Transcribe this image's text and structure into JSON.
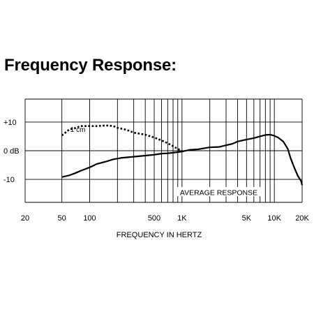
{
  "page": {
    "title": "Frequency Response:"
  },
  "chart_data": {
    "type": "line",
    "x_scale": "log",
    "xlim": [
      20,
      20000
    ],
    "ylim": [
      -18,
      18
    ],
    "x_ticks": [
      {
        "value": 20,
        "label": "20"
      },
      {
        "value": 50,
        "label": "50"
      },
      {
        "value": 100,
        "label": "100"
      },
      {
        "value": 500,
        "label": "500"
      },
      {
        "value": 1000,
        "label": "1K"
      },
      {
        "value": 5000,
        "label": "5K"
      },
      {
        "value": 10000,
        "label": "10K"
      },
      {
        "value": 20000,
        "label": "20K"
      }
    ],
    "y_ticks": [
      {
        "value": 10,
        "label": "+10"
      },
      {
        "value": 0,
        "label": "0 dB"
      },
      {
        "value": -10,
        "label": "-10"
      }
    ],
    "x_gridlines": [
      20,
      50,
      100,
      200,
      300,
      400,
      500,
      600,
      700,
      800,
      900,
      1000,
      2000,
      3000,
      4000,
      5000,
      6000,
      7000,
      8000,
      9000,
      10000,
      20000
    ],
    "y_gridlines": [
      -18,
      -10,
      0,
      10,
      18
    ],
    "xlabel": "FREQUENCY IN HERTZ",
    "ylabel": "",
    "grid": true,
    "series": [
      {
        "name": "AVERAGE RESPONSE",
        "style": "solid",
        "color": "#000000",
        "points": [
          [
            50,
            -9.2
          ],
          [
            60,
            -8.6
          ],
          [
            70,
            -7.8
          ],
          [
            80,
            -7.0
          ],
          [
            100,
            -5.8
          ],
          [
            120,
            -4.6
          ],
          [
            150,
            -3.8
          ],
          [
            180,
            -3.0
          ],
          [
            220,
            -2.5
          ],
          [
            300,
            -2.1
          ],
          [
            400,
            -1.7
          ],
          [
            500,
            -1.4
          ],
          [
            600,
            -1.0
          ],
          [
            700,
            -0.9
          ],
          [
            800,
            -0.7
          ],
          [
            1000,
            -0.3
          ],
          [
            1200,
            0.3
          ],
          [
            1500,
            0.5
          ],
          [
            2000,
            1.2
          ],
          [
            2500,
            1.3
          ],
          [
            3000,
            1.9
          ],
          [
            3500,
            2.4
          ],
          [
            4000,
            3.2
          ],
          [
            5000,
            3.9
          ],
          [
            6000,
            4.4
          ],
          [
            7000,
            5.0
          ],
          [
            8000,
            5.5
          ],
          [
            9000,
            5.6
          ],
          [
            10000,
            5.2
          ],
          [
            11000,
            4.6
          ],
          [
            12500,
            3.2
          ],
          [
            14000,
            0.6
          ],
          [
            15000,
            -2.6
          ],
          [
            16500,
            -6.0
          ],
          [
            18000,
            -8.8
          ],
          [
            19500,
            -10.6
          ],
          [
            20000,
            -12.0
          ]
        ]
      },
      {
        "name": "1 cm",
        "style": "dotted",
        "color": "#000000",
        "points": [
          [
            50,
            5.3
          ],
          [
            55,
            6.4
          ],
          [
            60,
            7.4
          ],
          [
            70,
            7.9
          ],
          [
            80,
            8.6
          ],
          [
            100,
            8.6
          ],
          [
            120,
            8.6
          ],
          [
            150,
            8.8
          ],
          [
            180,
            8.6
          ],
          [
            200,
            8.0
          ],
          [
            250,
            7.3
          ],
          [
            300,
            6.3
          ],
          [
            400,
            5.6
          ],
          [
            500,
            4.6
          ],
          [
            600,
            3.6
          ],
          [
            700,
            2.6
          ],
          [
            800,
            1.6
          ],
          [
            900,
            0.6
          ],
          [
            1000,
            0.0
          ]
        ],
        "annotation": {
          "text": "1 cm",
          "x": 90,
          "y": 7.5
        }
      }
    ],
    "annotations": [
      {
        "text": "AVERAGE RESPONSE",
        "x": 2500,
        "y": -14.5
      }
    ]
  }
}
